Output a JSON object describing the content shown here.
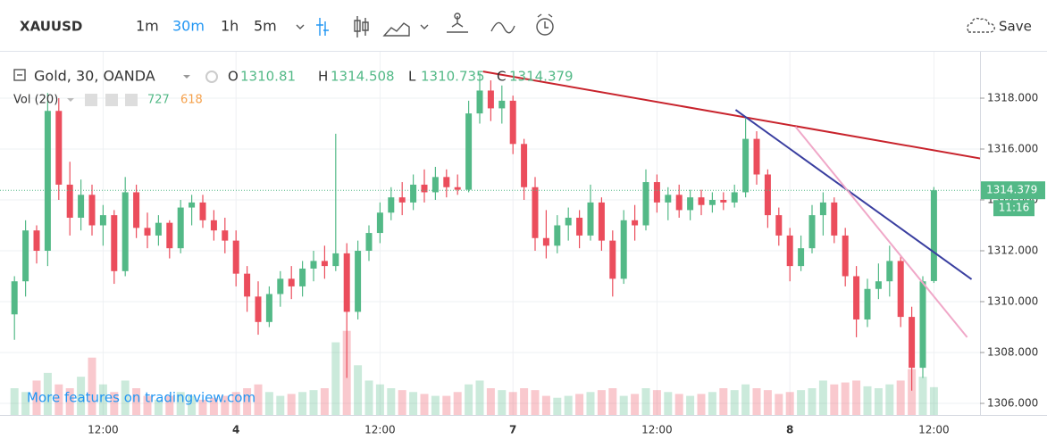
{
  "toolbar": {
    "symbol": "XAUUSD",
    "intervals": [
      "1m",
      "30m",
      "1h",
      "5m"
    ],
    "active_interval": 1,
    "save": "Save"
  },
  "chart_data": {
    "type": "candlestick",
    "title": "Gold, 30, OANDA",
    "ohlc_labels": [
      "O",
      "H",
      "L",
      "C"
    ],
    "volume_label": "Vol (20)",
    "volume_ma": 618,
    "countdown": "11:16",
    "watermark": "More features on tradingview.com",
    "categories": [
      null,
      null,
      null,
      null,
      null,
      null,
      null,
      null,
      "12:00",
      null,
      null,
      null,
      null,
      null,
      null,
      null,
      null,
      null,
      null,
      null,
      "4",
      null,
      null,
      null,
      null,
      null,
      null,
      null,
      null,
      null,
      null,
      null,
      null,
      "12:00",
      null,
      null,
      null,
      null,
      null,
      null,
      null,
      null,
      null,
      null,
      null,
      "7",
      null,
      null,
      null,
      null,
      null,
      null,
      null,
      null,
      null,
      null,
      null,
      null,
      "12:00",
      null,
      null,
      null,
      null,
      null,
      null,
      null,
      null,
      null,
      null,
      null,
      "8",
      null,
      null,
      null,
      null,
      null,
      null,
      null,
      null,
      null,
      null,
      null,
      null,
      "12:00"
    ],
    "ohlc": [
      [
        1309.5,
        1311.0,
        1308.5,
        1310.8
      ],
      [
        1310.8,
        1313.2,
        1310.2,
        1312.8
      ],
      [
        1312.8,
        1313.0,
        1311.5,
        1312.0
      ],
      [
        1312.0,
        1318.2,
        1311.4,
        1317.5
      ],
      [
        1317.5,
        1318.0,
        1314.0,
        1314.6
      ],
      [
        1314.6,
        1315.5,
        1312.6,
        1313.3
      ],
      [
        1313.3,
        1314.8,
        1312.8,
        1314.2
      ],
      [
        1314.2,
        1314.6,
        1312.6,
        1313.0
      ],
      [
        1313.0,
        1313.8,
        1312.2,
        1313.4
      ],
      [
        1313.4,
        1313.6,
        1310.7,
        1311.2
      ],
      [
        1311.2,
        1314.9,
        1311.0,
        1314.3
      ],
      [
        1314.3,
        1314.6,
        1312.5,
        1312.9
      ],
      [
        1312.9,
        1313.5,
        1312.1,
        1312.6
      ],
      [
        1312.6,
        1313.4,
        1312.2,
        1313.1
      ],
      [
        1313.1,
        1313.2,
        1311.7,
        1312.1
      ],
      [
        1312.1,
        1314.0,
        1311.9,
        1313.7
      ],
      [
        1313.7,
        1314.2,
        1313.0,
        1313.9
      ],
      [
        1313.9,
        1314.2,
        1312.9,
        1313.2
      ],
      [
        1313.2,
        1313.6,
        1312.4,
        1312.8
      ],
      [
        1312.8,
        1313.3,
        1311.9,
        1312.4
      ],
      [
        1312.4,
        1312.8,
        1310.6,
        1311.1
      ],
      [
        1311.1,
        1311.4,
        1309.6,
        1310.2
      ],
      [
        1310.2,
        1310.8,
        1308.7,
        1309.2
      ],
      [
        1309.2,
        1310.6,
        1309.0,
        1310.3
      ],
      [
        1310.3,
        1311.2,
        1309.8,
        1310.9
      ],
      [
        1310.9,
        1311.4,
        1310.1,
        1310.6
      ],
      [
        1310.6,
        1311.6,
        1310.2,
        1311.3
      ],
      [
        1311.3,
        1312.0,
        1310.8,
        1311.6
      ],
      [
        1311.6,
        1312.2,
        1310.9,
        1311.4
      ],
      [
        1311.4,
        1316.6,
        1311.2,
        1311.9
      ],
      [
        1311.9,
        1312.3,
        1307.0,
        1309.6
      ],
      [
        1309.6,
        1312.4,
        1309.3,
        1312.0
      ],
      [
        1312.0,
        1313.0,
        1311.6,
        1312.7
      ],
      [
        1312.7,
        1313.9,
        1312.3,
        1313.5
      ],
      [
        1313.5,
        1314.5,
        1313.2,
        1314.1
      ],
      [
        1314.1,
        1314.7,
        1313.4,
        1313.9
      ],
      [
        1313.9,
        1315.0,
        1313.6,
        1314.6
      ],
      [
        1314.6,
        1315.2,
        1313.9,
        1314.3
      ],
      [
        1314.3,
        1315.3,
        1314.0,
        1314.9
      ],
      [
        1314.9,
        1315.2,
        1314.1,
        1314.5
      ],
      [
        1314.5,
        1315.0,
        1314.2,
        1314.4
      ],
      [
        1314.4,
        1317.9,
        1314.3,
        1317.4
      ],
      [
        1317.4,
        1319.0,
        1317.0,
        1318.3
      ],
      [
        1318.3,
        1318.7,
        1317.1,
        1317.6
      ],
      [
        1317.6,
        1318.5,
        1317.0,
        1317.9
      ],
      [
        1317.9,
        1318.1,
        1315.8,
        1316.2
      ],
      [
        1316.2,
        1316.4,
        1314.0,
        1314.5
      ],
      [
        1314.5,
        1314.9,
        1312.0,
        1312.5
      ],
      [
        1312.5,
        1313.6,
        1311.7,
        1312.2
      ],
      [
        1312.2,
        1313.4,
        1311.9,
        1313.0
      ],
      [
        1313.0,
        1313.7,
        1312.4,
        1313.3
      ],
      [
        1313.3,
        1313.6,
        1312.1,
        1312.6
      ],
      [
        1312.6,
        1314.6,
        1312.4,
        1313.9
      ],
      [
        1313.9,
        1314.1,
        1312.0,
        1312.4
      ],
      [
        1312.4,
        1312.8,
        1310.2,
        1310.9
      ],
      [
        1310.9,
        1313.6,
        1310.7,
        1313.2
      ],
      [
        1313.2,
        1313.8,
        1312.4,
        1313.0
      ],
      [
        1313.0,
        1315.2,
        1312.8,
        1314.7
      ],
      [
        1314.7,
        1315.0,
        1313.5,
        1313.9
      ],
      [
        1313.9,
        1314.5,
        1313.2,
        1314.2
      ],
      [
        1314.2,
        1314.6,
        1313.3,
        1313.6
      ],
      [
        1313.6,
        1314.4,
        1313.2,
        1314.1
      ],
      [
        1314.1,
        1314.4,
        1313.4,
        1313.8
      ],
      [
        1313.8,
        1314.3,
        1313.5,
        1314.0
      ],
      [
        1314.0,
        1314.3,
        1313.6,
        1313.9
      ],
      [
        1313.9,
        1314.6,
        1313.7,
        1314.3
      ],
      [
        1314.3,
        1317.2,
        1314.1,
        1316.4
      ],
      [
        1316.4,
        1316.7,
        1314.6,
        1315.0
      ],
      [
        1315.0,
        1315.2,
        1312.9,
        1313.4
      ],
      [
        1313.4,
        1313.7,
        1312.2,
        1312.6
      ],
      [
        1312.6,
        1312.9,
        1310.8,
        1311.4
      ],
      [
        1311.4,
        1312.6,
        1311.2,
        1312.1
      ],
      [
        1312.1,
        1313.8,
        1311.9,
        1313.4
      ],
      [
        1313.4,
        1314.3,
        1312.6,
        1313.9
      ],
      [
        1313.9,
        1314.1,
        1312.3,
        1312.6
      ],
      [
        1312.6,
        1312.9,
        1310.6,
        1311.0
      ],
      [
        1311.0,
        1311.4,
        1308.6,
        1309.3
      ],
      [
        1309.3,
        1310.9,
        1309.0,
        1310.5
      ],
      [
        1310.5,
        1311.5,
        1310.1,
        1310.8
      ],
      [
        1310.8,
        1312.2,
        1310.2,
        1311.6
      ],
      [
        1311.6,
        1311.8,
        1309.0,
        1309.4
      ],
      [
        1309.4,
        1309.8,
        1306.5,
        1307.4
      ],
      [
        1307.4,
        1311.0,
        1307.0,
        1310.8
      ],
      [
        1310.81,
        1314.508,
        1310.735,
        1314.379
      ]
    ],
    "volume": [
      700,
      600,
      900,
      1100,
      800,
      700,
      1000,
      1500,
      800,
      600,
      900,
      700,
      500,
      400,
      500,
      600,
      500,
      400,
      450,
      500,
      600,
      700,
      800,
      600,
      500,
      550,
      600,
      650,
      700,
      1900,
      2200,
      1300,
      900,
      800,
      700,
      650,
      600,
      550,
      500,
      500,
      600,
      800,
      900,
      700,
      650,
      600,
      700,
      650,
      500,
      450,
      500,
      550,
      600,
      650,
      700,
      500,
      550,
      700,
      650,
      600,
      550,
      500,
      550,
      600,
      700,
      650,
      800,
      700,
      650,
      550,
      600,
      650,
      700,
      900,
      800,
      850,
      900,
      750,
      700,
      800,
      900,
      1200,
      1000,
      727
    ],
    "up_color": "#53b987",
    "down_color": "#eb4d5c",
    "ylim": [
      1305.544,
      1319.825
    ],
    "yticks": [
      {
        "value": 1306,
        "label": "1306.000"
      },
      {
        "value": 1308,
        "label": "1308.000"
      },
      {
        "value": 1310,
        "label": "1310.000"
      },
      {
        "value": 1312,
        "label": "1312.000"
      },
      {
        "value": 1314,
        "label": "1314.000"
      },
      {
        "value": 1316,
        "label": "1316.000"
      },
      {
        "value": 1318,
        "label": "1318.000"
      }
    ],
    "vlim": [
      0,
      2800
    ],
    "grid": true,
    "lines": [
      {
        "color": "#c8232c",
        "x": [
          42.3,
          89.7
        ],
        "y": [
          1319.05,
          1315.44
        ]
      },
      {
        "color": "#3a3fa0",
        "x": [
          65.1,
          86.4
        ],
        "y": [
          1317.54,
          1310.88
        ]
      },
      {
        "color": "#f0a8c8",
        "x": [
          70.5,
          86.0
        ],
        "y": [
          1316.88,
          1308.6
        ]
      }
    ]
  }
}
